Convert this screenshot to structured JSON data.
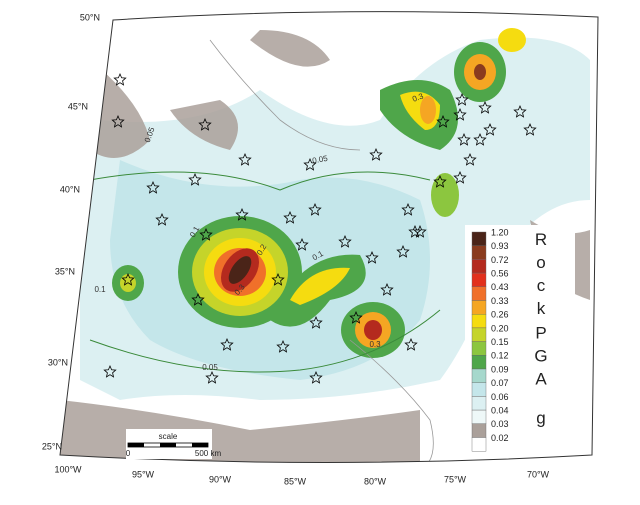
{
  "map": {
    "latitude_labels": [
      "50°N",
      "45°N",
      "40°N",
      "35°N",
      "30°N",
      "25°N"
    ],
    "longitude_labels": [
      "100°W",
      "95°W",
      "90°W",
      "85°W",
      "80°W",
      "75°W",
      "70°W"
    ],
    "legend": {
      "labels": [
        "1.20",
        "0.93",
        "0.72",
        "0.56",
        "0.43",
        "0.33",
        "0.26",
        "0.20",
        "0.15",
        "0.12",
        "0.09",
        "0.07",
        "0.06",
        "0.04",
        "0.03",
        "0.02"
      ],
      "colors": [
        "#4a2418",
        "#8a3b1e",
        "#b42a1e",
        "#e2301c",
        "#f0702a",
        "#f5a623",
        "#f5dc10",
        "#c5d42a",
        "#8cc63f",
        "#4fa64a",
        "#a6d8cc",
        "#c4e6ea",
        "#dcf0f2",
        "#eef8f8",
        "#aaa09a",
        "#ffffff"
      ],
      "title": [
        "Rock",
        "PGA",
        "g"
      ]
    },
    "scale": {
      "title": "scale",
      "start": "0",
      "end": "500 km"
    },
    "contour_labels": [
      "0.05",
      "0.05",
      "0.1",
      "0.2",
      "0.3",
      "0.1",
      "0.3",
      "0.1",
      "0.05",
      "0.3"
    ]
  }
}
